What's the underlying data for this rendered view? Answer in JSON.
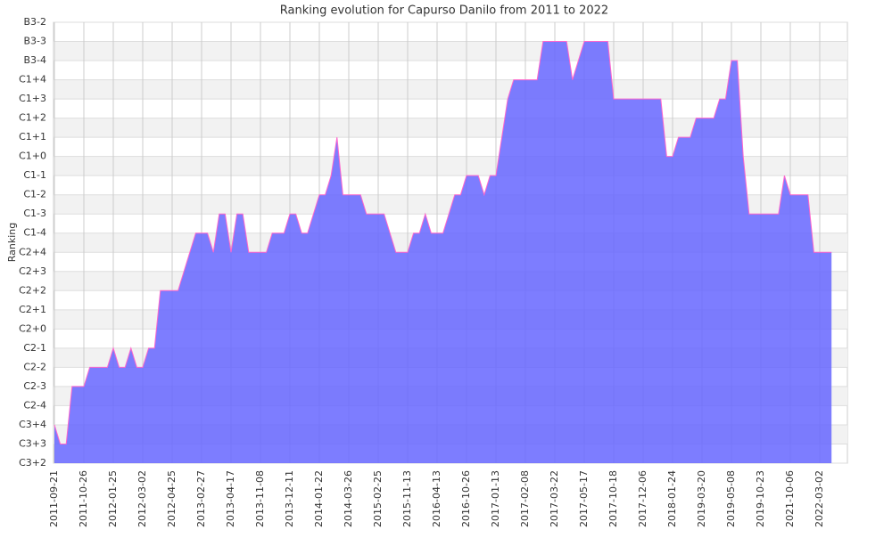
{
  "chart_data": {
    "type": "area",
    "title": "Ranking evolution for Capurso Danilo from 2011 to 2022",
    "ylabel": "Ranking",
    "color": "#6666ff",
    "line_color": "#ff66cc",
    "grid": true,
    "ylim": [
      0,
      23
    ],
    "yticks": [
      {
        "value": 0,
        "label": "C3+2"
      },
      {
        "value": 1,
        "label": "C3+3"
      },
      {
        "value": 2,
        "label": "C3+4"
      },
      {
        "value": 3,
        "label": "C2-4"
      },
      {
        "value": 4,
        "label": "C2-3"
      },
      {
        "value": 5,
        "label": "C2-2"
      },
      {
        "value": 6,
        "label": "C2-1"
      },
      {
        "value": 7,
        "label": "C2+0"
      },
      {
        "value": 8,
        "label": "C2+1"
      },
      {
        "value": 9,
        "label": "C2+2"
      },
      {
        "value": 10,
        "label": "C2+3"
      },
      {
        "value": 11,
        "label": "C2+4"
      },
      {
        "value": 12,
        "label": "C1-4"
      },
      {
        "value": 13,
        "label": "C1-3"
      },
      {
        "value": 14,
        "label": "C1-2"
      },
      {
        "value": 15,
        "label": "C1-1"
      },
      {
        "value": 16,
        "label": "C1+0"
      },
      {
        "value": 17,
        "label": "C1+1"
      },
      {
        "value": 18,
        "label": "C1+2"
      },
      {
        "value": 19,
        "label": "C1+3"
      },
      {
        "value": 20,
        "label": "C1+4"
      },
      {
        "value": 21,
        "label": "B3-4"
      },
      {
        "value": 22,
        "label": "B3-3"
      },
      {
        "value": 23,
        "label": "B3-2"
      }
    ],
    "categories": [
      "2011-09-21",
      null,
      null,
      null,
      null,
      "2011-10-26",
      null,
      null,
      null,
      null,
      "2012-01-25",
      null,
      null,
      null,
      null,
      "2012-03-02",
      null,
      null,
      null,
      null,
      "2012-04-25",
      null,
      null,
      null,
      null,
      "2013-02-27",
      null,
      null,
      null,
      null,
      "2013-04-17",
      null,
      null,
      null,
      null,
      "2013-11-08",
      null,
      null,
      null,
      null,
      "2013-12-11",
      null,
      null,
      null,
      null,
      "2014-01-22",
      null,
      null,
      null,
      null,
      "2014-03-26",
      null,
      null,
      null,
      null,
      "2015-02-25",
      null,
      null,
      null,
      null,
      "2015-11-13",
      null,
      null,
      null,
      null,
      "2016-04-13",
      null,
      null,
      null,
      null,
      "2016-10-26",
      null,
      null,
      null,
      null,
      "2017-01-13",
      null,
      null,
      null,
      null,
      "2017-02-08",
      null,
      null,
      null,
      null,
      "2017-03-22",
      null,
      null,
      null,
      null,
      "2017-05-17",
      null,
      null,
      null,
      null,
      "2017-10-18",
      null,
      null,
      null,
      null,
      "2017-12-06",
      null,
      null,
      null,
      null,
      "2018-01-24",
      null,
      null,
      null,
      null,
      "2019-03-20",
      null,
      null,
      null,
      null,
      "2019-05-08",
      null,
      null,
      null,
      null,
      "2019-10-23",
      null,
      null,
      null,
      null,
      "2021-10-06",
      null,
      null,
      null,
      null,
      "2022-03-02",
      null,
      null
    ],
    "values": [
      2,
      1,
      1,
      4,
      4,
      4,
      5,
      5,
      5,
      5,
      6,
      5,
      5,
      6,
      5,
      5,
      6,
      6,
      9,
      9,
      9,
      9,
      10,
      11,
      12,
      12,
      12,
      11,
      13,
      13,
      11,
      13,
      13,
      11,
      11,
      11,
      11,
      12,
      12,
      12,
      13,
      13,
      12,
      12,
      13,
      14,
      14,
      15,
      17,
      14,
      14,
      14,
      14,
      13,
      13,
      13,
      13,
      12,
      11,
      11,
      11,
      12,
      12,
      13,
      12,
      12,
      12,
      13,
      14,
      14,
      15,
      15,
      15,
      14,
      15,
      15,
      17,
      19,
      20,
      20,
      20,
      20,
      20,
      22,
      22,
      22,
      22,
      22,
      20,
      21,
      22,
      22,
      22,
      22,
      22,
      19,
      19,
      19,
      19,
      19,
      19,
      19,
      19,
      19,
      16,
      16,
      17,
      17,
      17,
      18,
      18,
      18,
      18,
      19,
      19,
      21,
      21,
      16,
      13,
      13,
      13,
      13,
      13,
      13,
      15,
      14,
      14,
      14,
      14,
      11,
      11,
      11,
      11
    ]
  }
}
